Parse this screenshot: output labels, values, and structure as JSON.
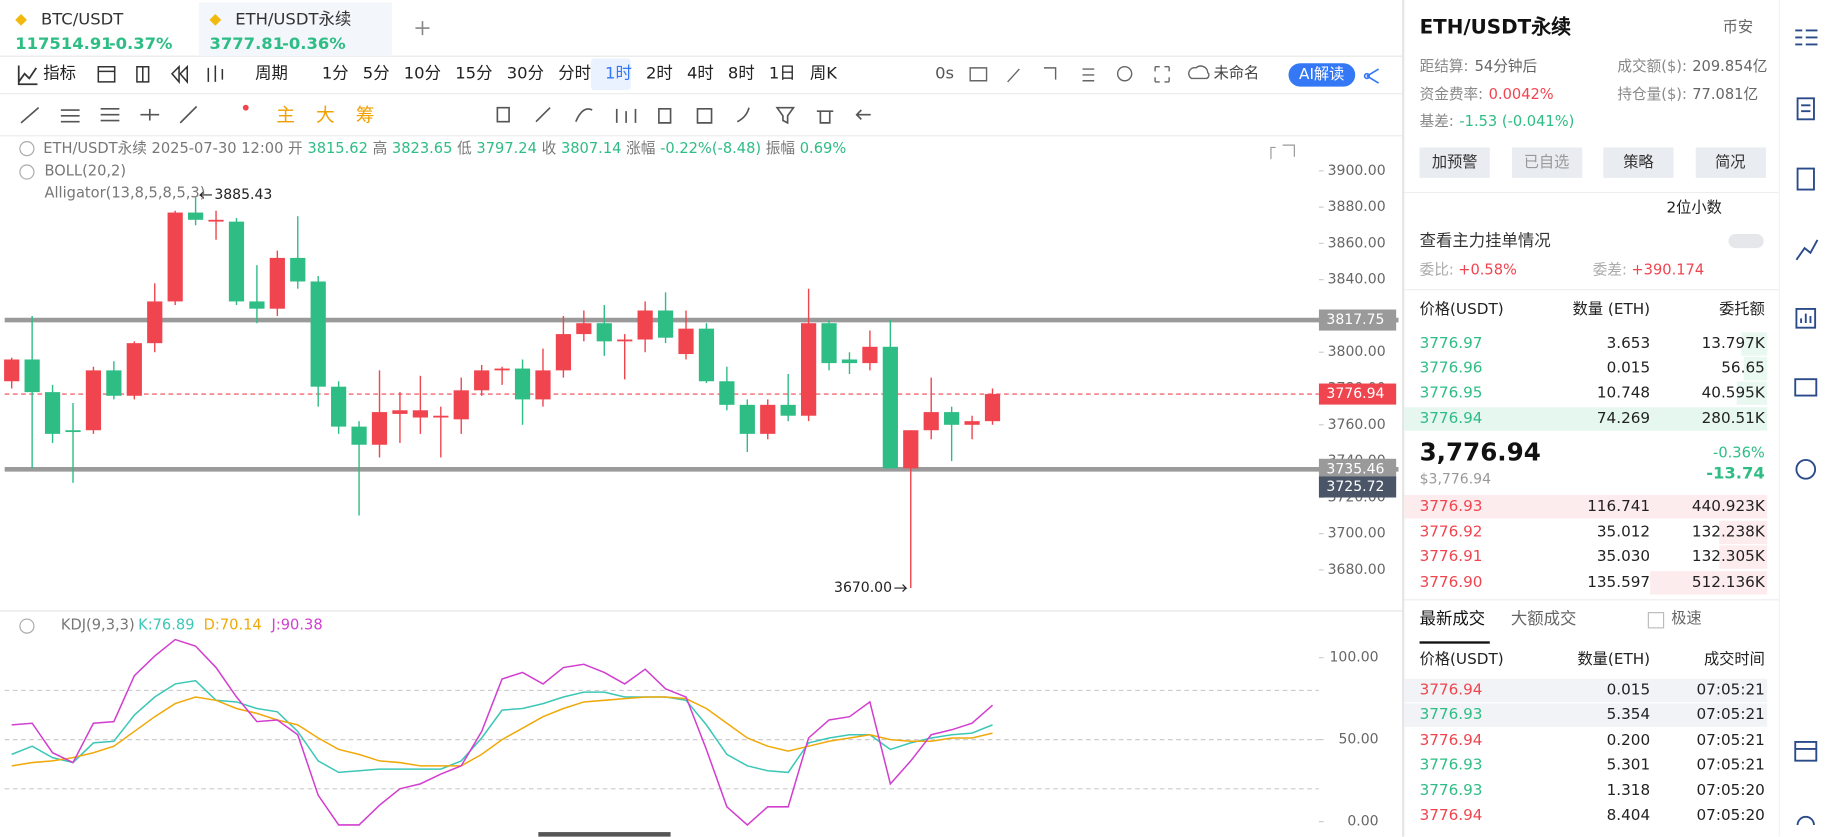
{
  "tabs": [
    {
      "symbol": "BTC/USDT",
      "price": "117514.91",
      "change": "-0.37%"
    },
    {
      "symbol": "ETH/USDT永续",
      "price": "3777.81",
      "change": "-0.36%"
    }
  ],
  "toolbar": {
    "indicators": "指标",
    "period": "周期",
    "intervals": [
      "1分",
      "5分",
      "10分",
      "15分",
      "30分",
      "分时",
      "1时",
      "2时",
      "4时",
      "8时",
      "1日",
      "周K"
    ],
    "active": "1时",
    "timer": "0s",
    "layout": "未命名",
    "ai": "AI解读"
  },
  "tools": [
    "主",
    "大",
    "筹"
  ],
  "legend": {
    "symbol": "ETH/USDT永续",
    "time": "2025-07-30 12:00",
    "fields": [
      {
        "label": "开",
        "value": "3815.62"
      },
      {
        "label": "高",
        "value": "3823.65"
      },
      {
        "label": "低",
        "value": "3797.24"
      },
      {
        "label": "收",
        "value": "3807.14"
      },
      {
        "label": "涨幅",
        "value": "-0.22%(-8.48)"
      },
      {
        "label": "振幅",
        "value": "0.69%"
      }
    ],
    "boll": "BOLL(20,2)",
    "alligator": "Alligator(13,8,5,8,5,3)"
  },
  "chart_data": [
    {
      "type": "candlestick",
      "up_color": "#f0454f",
      "down_color": "#2ebd85",
      "open": [
        3784,
        3796,
        3778,
        3757,
        3757,
        3790,
        3776,
        3805,
        3828,
        3877,
        3872,
        3872,
        3828,
        3824,
        3852,
        3839,
        3781,
        3759,
        3749,
        3766,
        3764,
        3764,
        3763,
        3779,
        3790,
        3791,
        3774,
        3790,
        3810,
        3816,
        3806,
        3807,
        3823,
        3799,
        3813,
        3784,
        3771,
        3755,
        3771,
        3765,
        3816,
        3796,
        3794,
        3803,
        3736,
        3757,
        3767,
        3760,
        3762
      ],
      "high": [
        3797,
        3820,
        3782,
        3772,
        3792,
        3795,
        3806,
        3838,
        3878,
        3885.43,
        3878,
        3874,
        3848,
        3856,
        3875,
        3842,
        3784,
        3762,
        3790,
        3778,
        3787,
        3770,
        3786,
        3793,
        3792,
        3796,
        3802,
        3820,
        3823,
        3826,
        3810,
        3828,
        3833,
        3823,
        3816,
        3792,
        3774,
        3774,
        3788,
        3835,
        3818,
        3800,
        3812,
        3818,
        3757,
        3786,
        3770,
        3765,
        3780
      ],
      "low": [
        3780,
        3736,
        3750,
        3728,
        3755,
        3774,
        3774,
        3800,
        3826,
        3870,
        3862,
        3826,
        3816,
        3820,
        3835,
        3770,
        3755,
        3710,
        3742,
        3750,
        3755,
        3742,
        3755,
        3776,
        3782,
        3760,
        3770,
        3786,
        3806,
        3798,
        3785,
        3800,
        3805,
        3796,
        3783,
        3768,
        3745,
        3752,
        3762,
        3762,
        3790,
        3788,
        3790,
        3737,
        3670,
        3752,
        3740,
        3752,
        3760
      ],
      "close": [
        3796,
        3778,
        3755,
        3756,
        3790,
        3776,
        3805,
        3828,
        3877,
        3873,
        3873,
        3828,
        3824,
        3852,
        3839,
        3781,
        3759,
        3749,
        3767,
        3768,
        3768,
        3765,
        3779,
        3790,
        3791,
        3774,
        3790,
        3810,
        3816,
        3806,
        3807,
        3823,
        3808,
        3813,
        3784,
        3771,
        3755,
        3771,
        3765,
        3816,
        3794,
        3794,
        3803,
        3736,
        3757,
        3767,
        3760,
        3762,
        3776.94
      ],
      "ylim": [
        3658.7,
        3910.3
      ],
      "yticks": [
        {
          "value": 3900,
          "label": "3900.00"
        },
        {
          "value": 3880,
          "label": "3880.00"
        },
        {
          "value": 3860,
          "label": "3860.00"
        },
        {
          "value": 3840,
          "label": "3840.00"
        },
        {
          "value": 3820,
          "label": "3820.00"
        },
        {
          "value": 3800,
          "label": "3800.00"
        },
        {
          "value": 3780,
          "label": "3780.00"
        },
        {
          "value": 3760,
          "label": "3760.00"
        },
        {
          "value": 3740,
          "label": "3740.00"
        },
        {
          "value": 3720,
          "label": "3720.00"
        },
        {
          "value": 3700,
          "label": "3700.00"
        },
        {
          "value": 3680,
          "label": "3680.00"
        }
      ],
      "levels": [
        3817.75,
        3735.46
      ],
      "level_color": "#9a9a9a",
      "last_price": 3776.94,
      "crosshair": 3725.72,
      "max_label": 3885.43,
      "min_label": {
        "value": 3670,
        "label": "3670.00"
      }
    },
    {
      "type": "line",
      "legend": "KDJ(9,3,3)",
      "ylim": [
        -7.1,
        112.1
      ],
      "yticks": [
        {
          "value": 100,
          "label": "100.00"
        },
        {
          "value": 50,
          "label": "50.00"
        },
        {
          "value": 0,
          "label": "0.00"
        }
      ],
      "levels": [
        80,
        50,
        20
      ],
      "series": [
        {
          "name": "K:76.89",
          "color": "#3cc7b6",
          "values": [
            41,
            46,
            39,
            36,
            48,
            49,
            65,
            76,
            84,
            86,
            74,
            73,
            69,
            67,
            55,
            37,
            30,
            31,
            32,
            32,
            32,
            32,
            37,
            51,
            68,
            69,
            72,
            76,
            79,
            79,
            76,
            76,
            76,
            74,
            59,
            41,
            34,
            31,
            30,
            48,
            51,
            53,
            53,
            44,
            48,
            51,
            53,
            54,
            59
          ]
        },
        {
          "name": "D:70.14",
          "color": "#f0a90b",
          "values": [
            34,
            36,
            37,
            39,
            42,
            46,
            55,
            64,
            72,
            76,
            74,
            69,
            66,
            62,
            59,
            51,
            44,
            41,
            37,
            36,
            34,
            34,
            34,
            41,
            50,
            57,
            64,
            69,
            73,
            74,
            75,
            76,
            76,
            75,
            69,
            60,
            51,
            46,
            43,
            46,
            49,
            51,
            53,
            50,
            49,
            49,
            51,
            51,
            54
          ]
        },
        {
          "name": "J:90.38",
          "color": "#d23fd0",
          "values": [
            59,
            60,
            42,
            36,
            60,
            61,
            89,
            101,
            111,
            107,
            94,
            76,
            61,
            62,
            53,
            16,
            -2,
            -2,
            10,
            20,
            23,
            29,
            34,
            55,
            87,
            91,
            84,
            94,
            96,
            91,
            84,
            93,
            81,
            76,
            44,
            9,
            -2,
            9,
            9,
            51,
            62,
            64,
            73,
            23,
            37,
            53,
            56,
            60,
            71
          ]
        }
      ]
    }
  ],
  "panel": {
    "symbol": "ETH/USDT永续",
    "exchange": "币安",
    "stats": [
      {
        "label": "距结算:",
        "value": "54分钟后"
      },
      {
        "label": "成交额($):",
        "value": "209.854亿"
      },
      {
        "label": "资金费率:",
        "value": "0.0042%"
      },
      {
        "label": "持仓量($):",
        "value": "77.081亿"
      },
      {
        "label": "基差:",
        "value": "-1.53 (-0.041%)"
      }
    ],
    "buttons": [
      "加预警",
      "已自选",
      "策略",
      "简况"
    ],
    "decimals": "2位小数",
    "main_orders": "查看主力挂单情况",
    "ratio": {
      "label": "委比:",
      "value": "+0.58%"
    },
    "diff": {
      "label": "委差:",
      "value": "+390.174"
    },
    "book_header": [
      "价格(USDT)",
      "数量 (ETH)",
      "委托额"
    ],
    "asks": [
      [
        "3776.97",
        "3.653",
        "13.797K"
      ],
      [
        "3776.96",
        "0.015",
        "56.65"
      ],
      [
        "3776.95",
        "10.748",
        "40.595K"
      ],
      [
        "3776.94",
        "74.269",
        "280.51K"
      ]
    ],
    "last": "3,776.94",
    "last_usd": "$3,776.94",
    "change_pct": "-0.36%",
    "change": "-13.74",
    "bids": [
      [
        "3776.93",
        "116.741",
        "440.923K"
      ],
      [
        "3776.92",
        "35.012",
        "132.238K"
      ],
      [
        "3776.91",
        "35.030",
        "132.305K"
      ],
      [
        "3776.90",
        "135.597",
        "512.136K"
      ]
    ],
    "trade_tabs": [
      "最新成交",
      "大额成交"
    ],
    "fast": "极速",
    "trade_header": [
      "价格(USDT)",
      "数量(ETH)",
      "成交时间"
    ],
    "trades": [
      {
        "price": "3776.94",
        "qty": "0.015",
        "time": "07:05:21",
        "color": "#f0454f"
      },
      {
        "price": "3776.93",
        "qty": "5.354",
        "time": "07:05:21",
        "color": "#2ebd85"
      },
      {
        "price": "3776.94",
        "qty": "0.200",
        "time": "07:05:21",
        "color": "#f0454f"
      },
      {
        "price": "3776.93",
        "qty": "5.301",
        "time": "07:05:21",
        "color": "#2ebd85"
      },
      {
        "price": "3776.93",
        "qty": "1.318",
        "time": "07:05:20",
        "color": "#2ebd85"
      },
      {
        "price": "3776.94",
        "qty": "8.404",
        "time": "07:05:20",
        "color": "#f0454f"
      }
    ]
  }
}
